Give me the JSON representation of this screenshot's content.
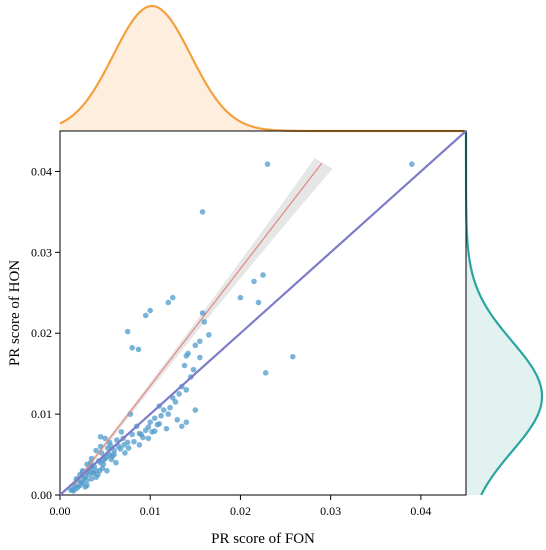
{
  "chart_data": {
    "type": "scatter",
    "title": "",
    "xlabel": "PR score of  FON",
    "ylabel": "PR score of HON",
    "xlim": [
      0,
      0.045
    ],
    "ylim": [
      0,
      0.045
    ],
    "xticks": [
      "0.00",
      "0.01",
      "0.02",
      "0.03",
      "0.04"
    ],
    "yticks": [
      "0.00",
      "0.01",
      "0.02",
      "0.03",
      "0.04"
    ],
    "grid": false,
    "legend": "none",
    "colors": {
      "points": "#4f9bcb",
      "regression_line": "#e08a7e",
      "confidence_band": "#e3e3e3",
      "identity_line": "#7b7bc9",
      "top_density": "#f5a040",
      "top_density_fill": "#fdeedd",
      "right_density": "#2aa5a0",
      "right_density_fill": "#e2f2f1"
    },
    "series": [
      {
        "x": [
          0.0015,
          0.0018,
          0.002,
          0.0022,
          0.0025,
          0.0018,
          0.0012,
          0.003,
          0.0028,
          0.0032,
          0.0035,
          0.0025,
          0.004,
          0.0038,
          0.0042,
          0.0045,
          0.003,
          0.005,
          0.0048,
          0.0052,
          0.0055,
          0.0045,
          0.006,
          0.0058,
          0.0062,
          0.0035,
          0.004,
          0.0025,
          0.003,
          0.0065,
          0.007,
          0.0068,
          0.0075,
          0.008,
          0.0078,
          0.0085,
          0.009,
          0.0095,
          0.01,
          0.0105,
          0.011,
          0.0115,
          0.012,
          0.0125,
          0.005,
          0.0055,
          0.0045,
          0.006,
          0.004,
          0.0035,
          0.003,
          0.0028,
          0.002,
          0.0022,
          0.0033,
          0.0037,
          0.0043,
          0.0047,
          0.0053,
          0.0057,
          0.0072,
          0.0076,
          0.0082,
          0.0088,
          0.0092,
          0.0098,
          0.0102,
          0.0108,
          0.0112,
          0.0118,
          0.0122,
          0.0128,
          0.0132,
          0.0135,
          0.0138,
          0.014,
          0.0142,
          0.0148,
          0.015,
          0.0155,
          0.0158,
          0.0165,
          0.0075,
          0.008,
          0.0087,
          0.0095,
          0.01,
          0.012,
          0.0125,
          0.0135,
          0.014,
          0.0145,
          0.0155,
          0.016,
          0.02,
          0.0215,
          0.022,
          0.0225,
          0.0228,
          0.023,
          0.0258,
          0.039,
          0.0158,
          0.013,
          0.014,
          0.015,
          0.0105,
          0.011,
          0.0098,
          0.0088,
          0.0063,
          0.0067,
          0.0071,
          0.0052,
          0.0048,
          0.0044,
          0.0036,
          0.0026,
          0.0024,
          0.0016,
          0.0014,
          0.0034,
          0.0046,
          0.0056
        ],
        "y": [
          0.0005,
          0.0008,
          0.001,
          0.0012,
          0.0015,
          0.002,
          0.0006,
          0.0018,
          0.0022,
          0.0025,
          0.002,
          0.0028,
          0.003,
          0.0035,
          0.0025,
          0.004,
          0.0012,
          0.0045,
          0.0038,
          0.003,
          0.005,
          0.006,
          0.0055,
          0.0048,
          0.004,
          0.0035,
          0.0022,
          0.003,
          0.0038,
          0.006,
          0.007,
          0.0078,
          0.0065,
          0.0075,
          0.01,
          0.0085,
          0.0075,
          0.008,
          0.009,
          0.0095,
          0.011,
          0.0105,
          0.01,
          0.012,
          0.007,
          0.0065,
          0.0072,
          0.005,
          0.0055,
          0.0045,
          0.0028,
          0.001,
          0.0018,
          0.0025,
          0.0032,
          0.0027,
          0.0042,
          0.0033,
          0.0058,
          0.0044,
          0.0052,
          0.0058,
          0.0066,
          0.0062,
          0.0071,
          0.0084,
          0.0078,
          0.0087,
          0.0098,
          0.0082,
          0.0108,
          0.0115,
          0.0125,
          0.0085,
          0.016,
          0.013,
          0.0175,
          0.0155,
          0.0185,
          0.017,
          0.0225,
          0.0198,
          0.0202,
          0.0182,
          0.018,
          0.0222,
          0.0228,
          0.0238,
          0.0244,
          0.0134,
          0.0172,
          0.0146,
          0.019,
          0.0214,
          0.0244,
          0.0264,
          0.0238,
          0.0272,
          0.0151,
          0.0409,
          0.0171,
          0.0409,
          0.035,
          0.0093,
          0.009,
          0.0105,
          0.0079,
          0.0088,
          0.007,
          0.0076,
          0.0068,
          0.0057,
          0.0062,
          0.0047,
          0.0043,
          0.003,
          0.0028,
          0.0021,
          0.0016,
          0.0012,
          0.0007,
          0.004,
          0.0052,
          0.0061
        ]
      }
    ],
    "regression_line": {
      "x": [
        0.0015,
        0.029
      ],
      "y": [
        0.0012,
        0.041
      ]
    },
    "identity_line": {
      "x": [
        0,
        0.045
      ],
      "y": [
        0,
        0.045
      ]
    },
    "top_density": {
      "mean": 0.0102,
      "sd": 0.0043
    },
    "right_density": {
      "mean": 0.0122,
      "sd": 0.0068
    }
  }
}
